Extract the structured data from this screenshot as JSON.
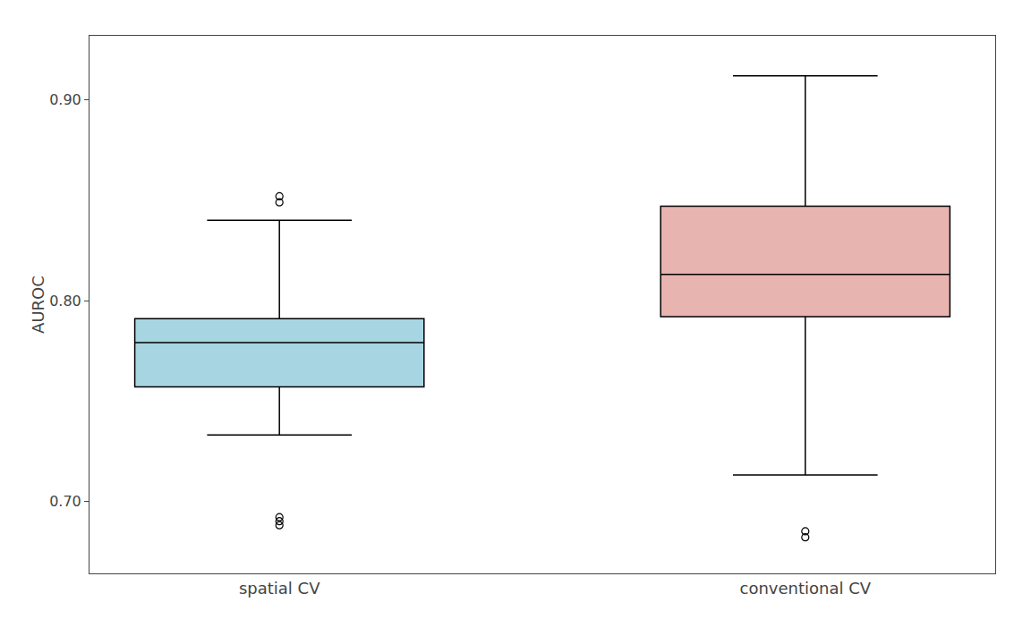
{
  "chart_data": {
    "type": "box",
    "categories": [
      "spatial CV",
      "conventional CV"
    ],
    "colors": [
      "#a8d5e2",
      "#e8b4b0"
    ],
    "ylabel": "AUROC",
    "ylim": [
      0.664,
      0.932
    ],
    "yticks": [
      {
        "value": 0.7,
        "label": "0.70"
      },
      {
        "value": 0.8,
        "label": "0.80"
      },
      {
        "value": 0.9,
        "label": "0.90"
      }
    ],
    "q1": [
      0.757,
      0.792
    ],
    "median": [
      0.779,
      0.813
    ],
    "q3": [
      0.791,
      0.847
    ],
    "whisker_low": [
      0.733,
      0.713
    ],
    "whisker_high": [
      0.84,
      0.912
    ],
    "outliers": [
      [
        0.852,
        0.849,
        0.692,
        0.69,
        0.688
      ],
      [
        0.685,
        0.682
      ]
    ],
    "grid": false
  }
}
